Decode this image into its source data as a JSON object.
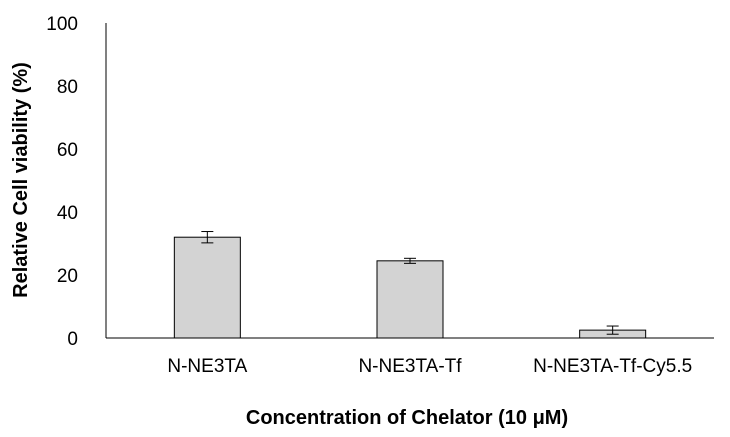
{
  "chart_data": {
    "type": "bar",
    "categories": [
      "N-NE3TA",
      "N-NE3TA-Tf",
      "N-NE3TA-Tf-Cy5.5"
    ],
    "values": [
      32,
      24.5,
      2.5
    ],
    "errors": [
      1.8,
      0.8,
      1.3
    ],
    "title": "",
    "xlabel": "Concentration of Chelator (10 μM)",
    "ylabel": "Relative Cell viability (%)",
    "ylim": [
      0,
      100
    ],
    "yticks": [
      0,
      20,
      40,
      60,
      80,
      100
    ],
    "grid": false,
    "legend": "none",
    "colors": {
      "bar_fill": "#d3d3d3",
      "bar_stroke": "#000000",
      "axis": "#000000"
    }
  }
}
